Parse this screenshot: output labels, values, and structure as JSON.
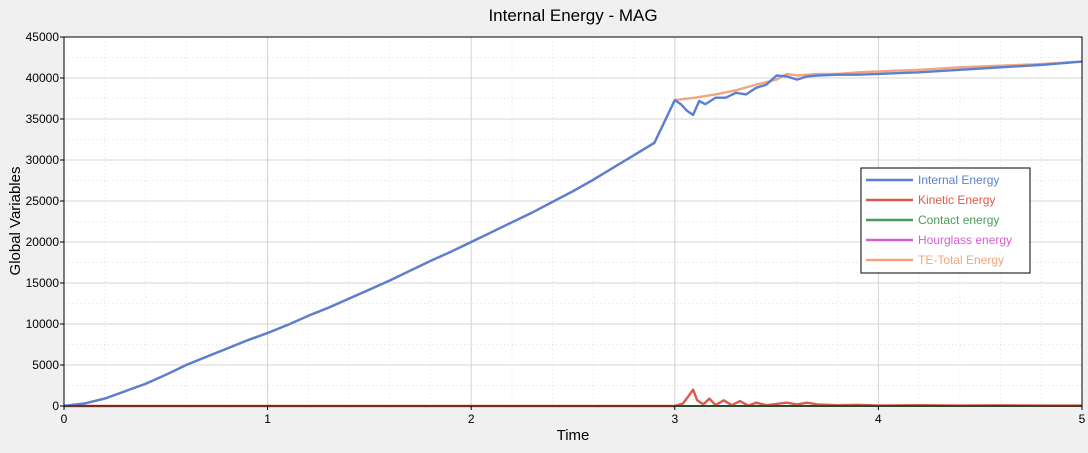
{
  "chart_data": {
    "type": "line",
    "title": "Internal Energy - MAG",
    "xlabel": "Time",
    "ylabel": "Global Variables",
    "xlim": [
      0,
      5
    ],
    "ylim": [
      0,
      45000
    ],
    "xticks": [
      0,
      1,
      2,
      3,
      4,
      5
    ],
    "yticks": [
      0,
      5000,
      10000,
      15000,
      20000,
      25000,
      30000,
      35000,
      40000,
      45000
    ],
    "grid": true,
    "legend_position": "right",
    "series": [
      {
        "name": "Internal Energy",
        "color": "#5b7fd4",
        "x": [
          0,
          0.1,
          0.2,
          0.3,
          0.4,
          0.5,
          0.6,
          0.7,
          0.8,
          0.9,
          1.0,
          1.1,
          1.2,
          1.3,
          1.4,
          1.5,
          1.6,
          1.7,
          1.8,
          1.9,
          2.0,
          2.1,
          2.2,
          2.3,
          2.4,
          2.5,
          2.6,
          2.7,
          2.8,
          2.9,
          3.0,
          3.03,
          3.06,
          3.09,
          3.12,
          3.15,
          3.2,
          3.25,
          3.3,
          3.35,
          3.4,
          3.45,
          3.5,
          3.55,
          3.6,
          3.65,
          3.7,
          3.8,
          3.9,
          4.0,
          4.2,
          4.4,
          4.6,
          4.8,
          5.0
        ],
        "values": [
          0,
          300,
          900,
          1800,
          2700,
          3800,
          5000,
          6000,
          7000,
          8000,
          8900,
          9900,
          11000,
          12000,
          13100,
          14200,
          15300,
          16500,
          17700,
          18800,
          20000,
          21200,
          22400,
          23600,
          24900,
          26200,
          27600,
          29100,
          30600,
          32100,
          37300,
          36800,
          36000,
          35500,
          37200,
          36800,
          37600,
          37600,
          38200,
          38000,
          38800,
          39200,
          40300,
          40200,
          39800,
          40200,
          40300,
          40400,
          40400,
          40500,
          40700,
          41000,
          41300,
          41600,
          42000
        ]
      },
      {
        "name": "Kinetic Energy",
        "color": "#d95b4a",
        "x": [
          0,
          3.0,
          3.04,
          3.07,
          3.09,
          3.11,
          3.14,
          3.17,
          3.2,
          3.24,
          3.28,
          3.32,
          3.36,
          3.4,
          3.45,
          3.5,
          3.55,
          3.6,
          3.65,
          3.7,
          3.8,
          3.9,
          4.0,
          4.2,
          4.4,
          4.6,
          4.8,
          5.0
        ],
        "values": [
          0,
          0,
          300,
          1300,
          2000,
          700,
          200,
          900,
          100,
          700,
          100,
          600,
          50,
          400,
          100,
          250,
          400,
          200,
          400,
          200,
          100,
          150,
          50,
          100,
          50,
          80,
          50,
          50
        ]
      },
      {
        "name": "Contact energy",
        "color": "#4b9a5b",
        "x": [
          0,
          5
        ],
        "values": [
          0,
          0
        ]
      },
      {
        "name": "Hourglass energy",
        "color": "#d45fd4",
        "x": [
          0,
          5
        ],
        "values": [
          0,
          0
        ]
      },
      {
        "name": "TE-Total Energy",
        "color": "#f2a57e",
        "x": [
          0,
          0.1,
          0.2,
          0.3,
          0.4,
          0.5,
          0.6,
          0.7,
          0.8,
          0.9,
          1.0,
          1.1,
          1.2,
          1.3,
          1.4,
          1.5,
          1.6,
          1.7,
          1.8,
          1.9,
          2.0,
          2.1,
          2.2,
          2.3,
          2.4,
          2.5,
          2.6,
          2.7,
          2.8,
          2.9,
          3.0,
          3.1,
          3.2,
          3.3,
          3.4,
          3.5,
          3.55,
          3.6,
          3.7,
          3.8,
          3.9,
          4.0,
          4.2,
          4.4,
          4.6,
          4.8,
          5.0
        ],
        "values": [
          0,
          300,
          900,
          1800,
          2700,
          3800,
          5000,
          6000,
          7000,
          8000,
          8900,
          9900,
          11000,
          12000,
          13100,
          14200,
          15300,
          16500,
          17700,
          18800,
          20000,
          21200,
          22400,
          23600,
          24900,
          26200,
          27600,
          29100,
          30600,
          32100,
          37300,
          37600,
          38000,
          38500,
          39200,
          39800,
          40500,
          40300,
          40500,
          40500,
          40700,
          40800,
          41000,
          41300,
          41500,
          41700,
          42000
        ]
      }
    ]
  }
}
